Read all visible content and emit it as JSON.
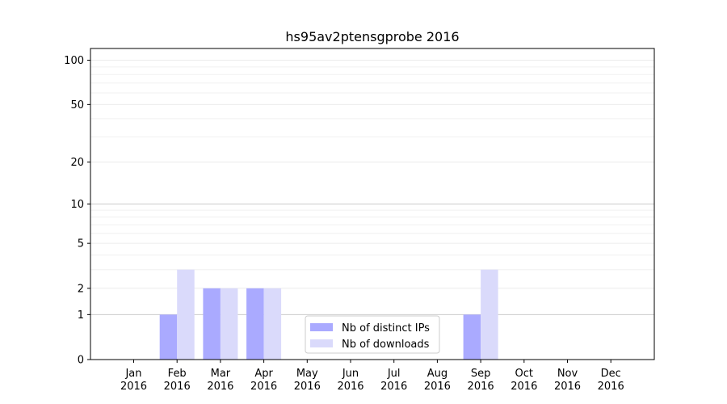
{
  "chart_data": {
    "type": "bar",
    "title": "hs95av2ptensgprobe 2016",
    "xlabel": "",
    "ylabel": "",
    "y_scale": "symlog",
    "ylim": [
      0,
      120
    ],
    "y_ticks": [
      0,
      1,
      2,
      5,
      10,
      20,
      50,
      100
    ],
    "categories": [
      "Jan\n2016",
      "Feb\n2016",
      "Mar\n2016",
      "Apr\n2016",
      "May\n2016",
      "Jun\n2016",
      "Jul\n2016",
      "Aug\n2016",
      "Sep\n2016",
      "Oct\n2016",
      "Nov\n2016",
      "Dec\n2016"
    ],
    "series": [
      {
        "name": "Nb of distinct IPs",
        "color": "#aaaaff",
        "values": [
          0,
          1,
          2,
          2,
          0,
          0,
          0,
          0,
          1,
          0,
          0,
          0
        ]
      },
      {
        "name": "Nb of downloads",
        "color": "#dadafb",
        "values": [
          0,
          3,
          2,
          2,
          0,
          0,
          0,
          0,
          3,
          0,
          0,
          0
        ]
      }
    ],
    "grid": true,
    "legend_position": "lower-center"
  }
}
